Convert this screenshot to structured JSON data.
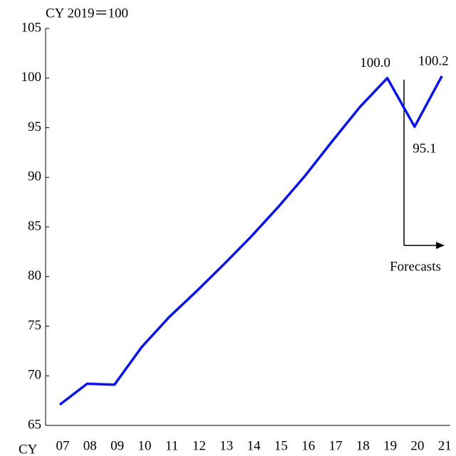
{
  "chart_data": {
    "type": "line",
    "y_axis_label": "CY 2019＝100",
    "x_axis_label": "CY",
    "categories": [
      "07",
      "08",
      "09",
      "10",
      "11",
      "12",
      "13",
      "14",
      "15",
      "16",
      "17",
      "18",
      "19",
      "20",
      "21"
    ],
    "series": [
      {
        "color": "#0a14e6",
        "values": [
          67.1,
          69.2,
          69.1,
          72.9,
          75.9,
          78.5,
          81.2,
          84.0,
          87.0,
          90.2,
          93.7,
          97.1,
          100.0,
          95.1,
          100.2
        ],
        "value_labels": [
          null,
          null,
          null,
          null,
          null,
          null,
          null,
          null,
          null,
          null,
          null,
          null,
          "100.0",
          "95.1",
          "100.2"
        ]
      }
    ],
    "ylim": [
      65,
      105
    ],
    "yticks": [
      65,
      70,
      75,
      80,
      85,
      90,
      95,
      100,
      105
    ],
    "annotation": "Forecasts"
  }
}
